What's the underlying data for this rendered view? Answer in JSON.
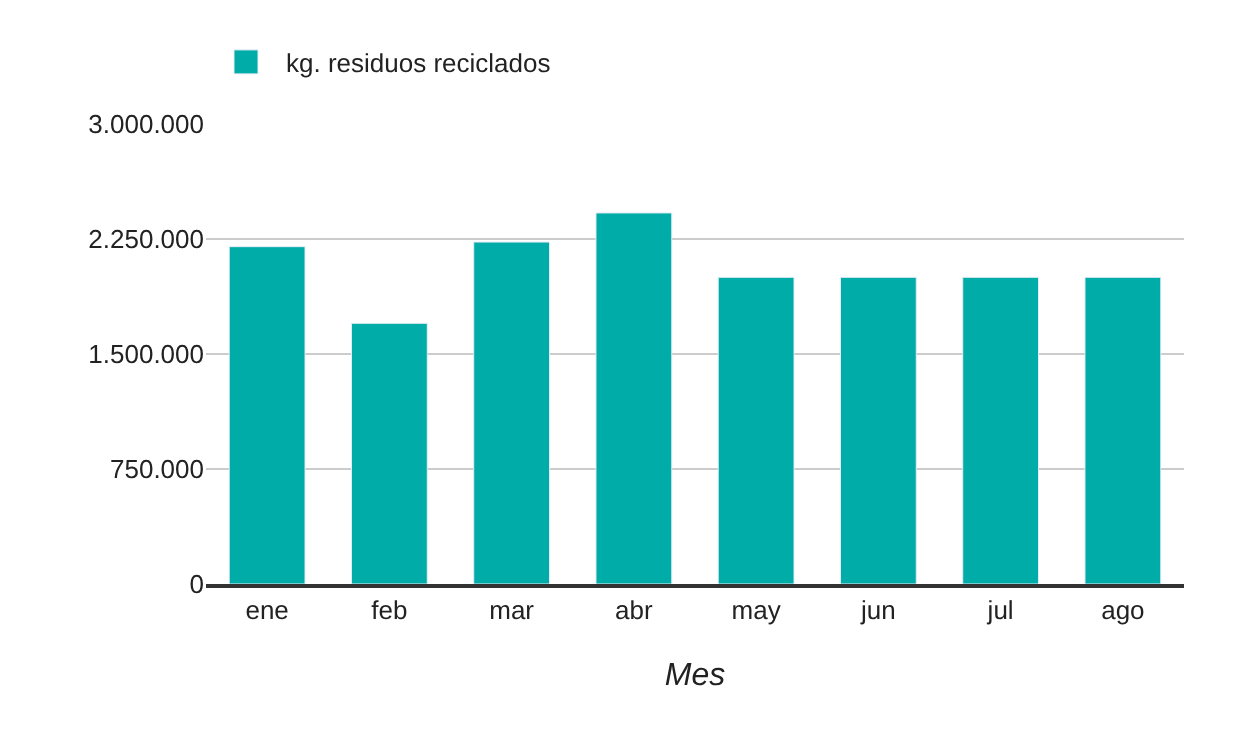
{
  "chart_data": {
    "type": "bar",
    "xlabel": "Mes",
    "categories": [
      "ene",
      "feb",
      "mar",
      "abr",
      "may",
      "jun",
      "jul",
      "ago"
    ],
    "series": [
      {
        "name": "kg. residuos reciclados",
        "color": "#00aca7",
        "values": [
          2200000,
          1700000,
          2230000,
          2420000,
          2000000,
          2000000,
          2000000,
          2000000
        ]
      }
    ],
    "ylim": [
      0,
      3000000
    ],
    "yticks": [
      {
        "value": 0,
        "label": "0"
      },
      {
        "value": 750000,
        "label": "750.000"
      },
      {
        "value": 1500000,
        "label": "1.500.000"
      },
      {
        "value": 2250000,
        "label": "2.250.000"
      },
      {
        "value": 3000000,
        "label": "3.000.000"
      }
    ],
    "grid": "y",
    "legend": "top left"
  }
}
